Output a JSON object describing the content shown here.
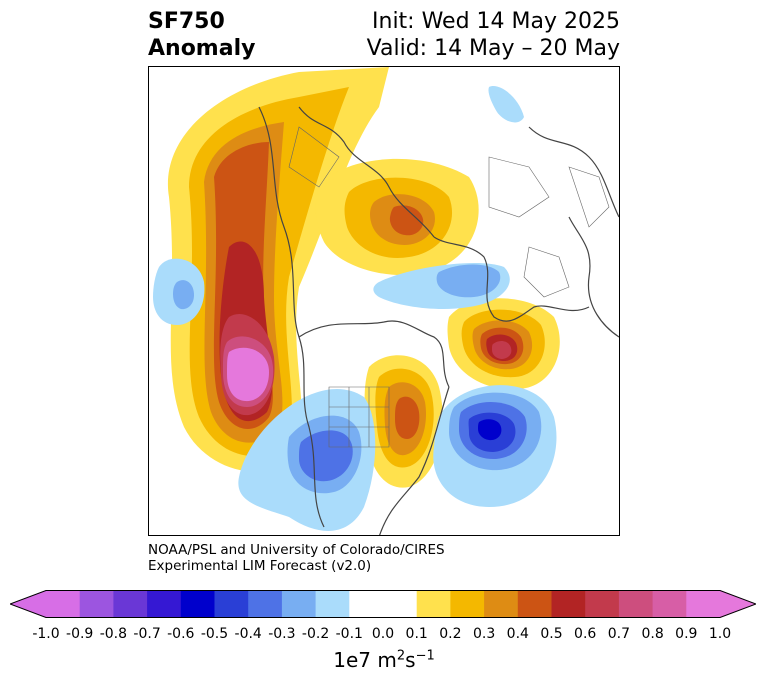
{
  "title": {
    "line1": "SF750",
    "line2": "Anomaly",
    "init": "Init: Wed 14 May 2025",
    "valid": "Valid: 14 May – 20 May"
  },
  "credit": {
    "line1": "NOAA/PSL and University of Colorado/CIRES",
    "line2": "Experimental LIM Forecast (v2.0)"
  },
  "colorbar": {
    "ticks": [
      "-1.0",
      "-0.9",
      "-0.8",
      "-0.7",
      "-0.6",
      "-0.5",
      "-0.4",
      "-0.3",
      "-0.2",
      "-0.1",
      "0.0",
      "0.1",
      "0.2",
      "0.3",
      "0.4",
      "0.5",
      "0.6",
      "0.7",
      "0.8",
      "0.9",
      "1.0"
    ],
    "colors": [
      "#d76ee6",
      "#9c55e0",
      "#6a37d6",
      "#3518d3",
      "#0000cc",
      "#2a3fd6",
      "#4e72e6",
      "#78aef2",
      "#aadcfb",
      "#ffffff",
      "#ffffff",
      "#ffe14d",
      "#f4b800",
      "#de8c14",
      "#cc5414",
      "#b22424",
      "#c23a4c",
      "#cd4e7e",
      "#d75ea6",
      "#e578dc"
    ],
    "units_base": "1e7 m",
    "units_exp1": "2",
    "units_mid": "s",
    "units_exp2": "−1"
  }
}
